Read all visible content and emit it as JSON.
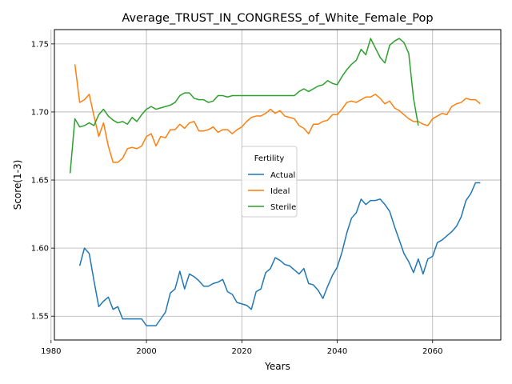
{
  "chart_data": {
    "type": "line",
    "title": "Average_TRUST_IN_CONGRESS_of_White_Female_Pop",
    "xlabel": "Years",
    "ylabel": "Score(1-3)",
    "xlim": [
      1980.7,
      2074.3
    ],
    "ylim": [
      1.5325,
      1.7605
    ],
    "xticks": [
      1980,
      2000,
      2020,
      2040,
      2060
    ],
    "yticks": [
      1.55,
      1.6,
      1.65,
      1.7,
      1.75
    ],
    "ytick_labels": [
      "1.55",
      "1.60",
      "1.65",
      "1.70",
      "1.75"
    ],
    "grid": true,
    "legend": {
      "title": "Fertility",
      "placement": "center-right"
    },
    "series": [
      {
        "name": "Actual",
        "color": "#1f77b4",
        "x": [
          1986,
          1987,
          1988,
          1989,
          1990,
          1991,
          1992,
          1993,
          1994,
          1995,
          1996,
          1997,
          1998,
          1999,
          2000,
          2001,
          2002,
          2003,
          2004,
          2005,
          2006,
          2007,
          2008,
          2009,
          2010,
          2011,
          2012,
          2013,
          2014,
          2015,
          2016,
          2017,
          2018,
          2019,
          2020,
          2021,
          2022,
          2023,
          2024,
          2025,
          2026,
          2027,
          2028,
          2029,
          2030,
          2031,
          2032,
          2033,
          2034,
          2035,
          2036,
          2037,
          2038,
          2039,
          2040,
          2041,
          2042,
          2043,
          2044,
          2045,
          2046,
          2047,
          2048,
          2049,
          2050,
          2051,
          2052,
          2053,
          2054,
          2055,
          2056,
          2057,
          2058,
          2059,
          2060,
          2061,
          2062,
          2063,
          2064,
          2065,
          2066,
          2067,
          2068,
          2069,
          2070
        ],
        "y": [
          1.587,
          1.6,
          1.596,
          1.576,
          1.557,
          1.561,
          1.564,
          1.555,
          1.557,
          1.548,
          1.548,
          1.548,
          1.548,
          1.548,
          1.543,
          1.543,
          1.543,
          1.548,
          1.553,
          1.567,
          1.57,
          1.583,
          1.57,
          1.581,
          1.579,
          1.576,
          1.572,
          1.572,
          1.574,
          1.575,
          1.577,
          1.568,
          1.566,
          1.56,
          1.559,
          1.558,
          1.555,
          1.568,
          1.57,
          1.582,
          1.585,
          1.593,
          1.591,
          1.588,
          1.587,
          1.584,
          1.581,
          1.585,
          1.574,
          1.573,
          1.569,
          1.563,
          1.572,
          1.58,
          1.586,
          1.597,
          1.611,
          1.622,
          1.626,
          1.636,
          1.632,
          1.635,
          1.635,
          1.636,
          1.632,
          1.627,
          1.616,
          1.606,
          1.596,
          1.59,
          1.582,
          1.592,
          1.581,
          1.592,
          1.594,
          1.604,
          1.606,
          1.609,
          1.612,
          1.616,
          1.623,
          1.635,
          1.64,
          1.648,
          1.648
        ]
      },
      {
        "name": "Ideal",
        "color": "#ff7f0e",
        "x": [
          1985,
          1986,
          1987,
          1988,
          1989,
          1990,
          1991,
          1992,
          1993,
          1994,
          1995,
          1996,
          1997,
          1998,
          1999,
          2000,
          2001,
          2002,
          2003,
          2004,
          2005,
          2006,
          2007,
          2008,
          2009,
          2010,
          2011,
          2012,
          2013,
          2014,
          2015,
          2016,
          2017,
          2018,
          2019,
          2020,
          2021,
          2022,
          2023,
          2024,
          2025,
          2026,
          2027,
          2028,
          2029,
          2030,
          2031,
          2032,
          2033,
          2034,
          2035,
          2036,
          2037,
          2038,
          2039,
          2040,
          2041,
          2042,
          2043,
          2044,
          2045,
          2046,
          2047,
          2048,
          2049,
          2050,
          2051,
          2052,
          2053,
          2054,
          2055,
          2056,
          2057,
          2058,
          2059,
          2060,
          2061,
          2062,
          2063,
          2064,
          2065,
          2066,
          2067,
          2068,
          2069,
          2070
        ],
        "y": [
          1.735,
          1.707,
          1.709,
          1.713,
          1.697,
          1.682,
          1.692,
          1.675,
          1.663,
          1.663,
          1.666,
          1.673,
          1.674,
          1.673,
          1.675,
          1.682,
          1.684,
          1.675,
          1.682,
          1.681,
          1.687,
          1.687,
          1.691,
          1.688,
          1.692,
          1.693,
          1.686,
          1.686,
          1.687,
          1.689,
          1.685,
          1.687,
          1.687,
          1.684,
          1.687,
          1.689,
          1.693,
          1.696,
          1.697,
          1.697,
          1.699,
          1.702,
          1.699,
          1.701,
          1.697,
          1.696,
          1.695,
          1.69,
          1.688,
          1.684,
          1.691,
          1.691,
          1.693,
          1.694,
          1.698,
          1.698,
          1.702,
          1.707,
          1.708,
          1.707,
          1.709,
          1.711,
          1.711,
          1.713,
          1.71,
          1.706,
          1.708,
          1.703,
          1.701,
          1.698,
          1.695,
          1.693,
          1.693,
          1.691,
          1.69,
          1.695,
          1.697,
          1.699,
          1.698,
          1.704,
          1.706,
          1.707,
          1.71,
          1.709,
          1.709,
          1.706
        ]
      },
      {
        "name": "Sterile",
        "color": "#2ca02c",
        "x": [
          1984,
          1985,
          1986,
          1987,
          1988,
          1989,
          1990,
          1991,
          1992,
          1993,
          1994,
          1995,
          1996,
          1997,
          1998,
          1999,
          2000,
          2001,
          2002,
          2003,
          2004,
          2005,
          2006,
          2007,
          2008,
          2009,
          2010,
          2011,
          2012,
          2013,
          2014,
          2015,
          2016,
          2017,
          2018,
          2019,
          2020,
          2021,
          2022,
          2023,
          2024,
          2025,
          2026,
          2027,
          2028,
          2029,
          2030,
          2031,
          2032,
          2033,
          2034,
          2035,
          2036,
          2037,
          2038,
          2039,
          2040,
          2041,
          2042,
          2043,
          2044,
          2045,
          2046,
          2047,
          2048,
          2049,
          2050,
          2051,
          2052,
          2053,
          2054,
          2055,
          2056,
          2057
        ],
        "y": [
          1.655,
          1.695,
          1.689,
          1.69,
          1.692,
          1.69,
          1.698,
          1.702,
          1.697,
          1.694,
          1.692,
          1.693,
          1.691,
          1.696,
          1.693,
          1.698,
          1.702,
          1.704,
          1.702,
          1.703,
          1.704,
          1.705,
          1.707,
          1.712,
          1.714,
          1.714,
          1.71,
          1.709,
          1.709,
          1.707,
          1.708,
          1.712,
          1.712,
          1.711,
          1.712,
          1.712,
          1.712,
          1.712,
          1.712,
          1.712,
          1.712,
          1.712,
          1.712,
          1.712,
          1.712,
          1.712,
          1.712,
          1.712,
          1.715,
          1.717,
          1.715,
          1.717,
          1.719,
          1.72,
          1.723,
          1.721,
          1.72,
          1.726,
          1.731,
          1.735,
          1.738,
          1.746,
          1.742,
          1.754,
          1.747,
          1.74,
          1.736,
          1.749,
          1.752,
          1.754,
          1.751,
          1.743,
          1.71,
          1.69
        ]
      }
    ]
  }
}
